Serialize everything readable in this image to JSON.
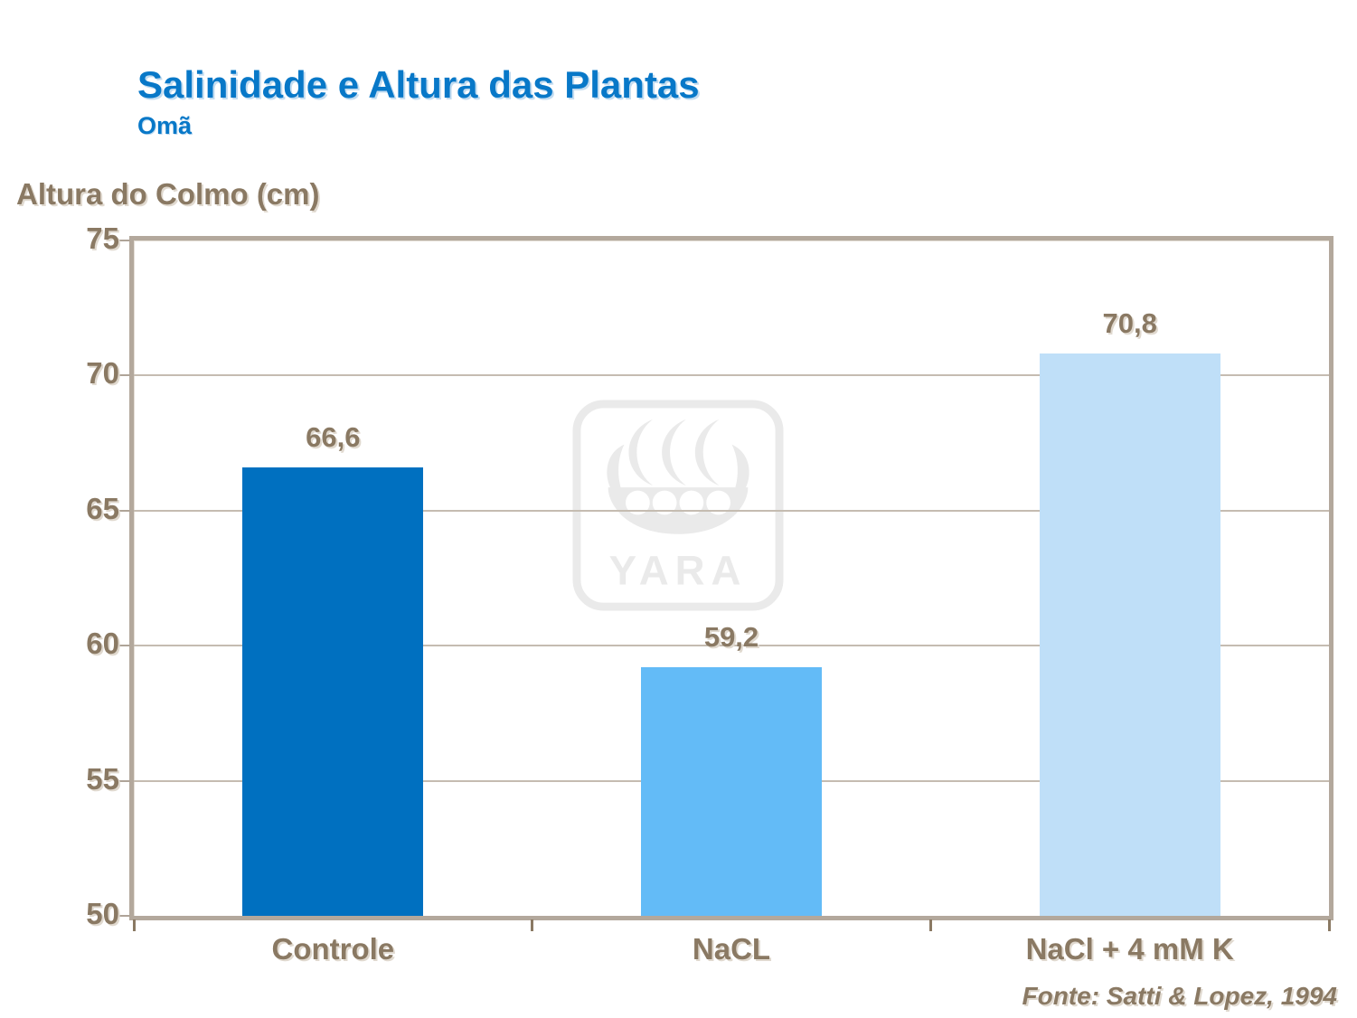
{
  "chart_data": {
    "type": "bar",
    "title": "Salinidade e Altura das Plantas",
    "subtitle": "Omã",
    "ylabel": "Altura do Colmo (cm)",
    "xlabel": "",
    "categories": [
      "Controle",
      "NaCL",
      "NaCl + 4 mM K"
    ],
    "values": [
      66.6,
      59.2,
      70.8
    ],
    "value_labels": [
      "66,6",
      "59,2",
      "70,8"
    ],
    "bar_colors": [
      "#0070C0",
      "#63BBF7",
      "#BFDFF8"
    ],
    "ylim": [
      50,
      75
    ],
    "yticks": [
      50,
      55,
      60,
      65,
      70,
      75
    ],
    "grid": true,
    "legend_position": "none"
  },
  "source": {
    "text": "Fonte:  Satti  &  Lopez,  1994"
  },
  "watermark": {
    "text": "YARA"
  },
  "colors": {
    "title_blue": "#0878C8",
    "text_brown": "#8A7963",
    "frame_tan": "#B3A89C",
    "gridline": "#C5BCB1",
    "background": "#FFFFFF"
  }
}
